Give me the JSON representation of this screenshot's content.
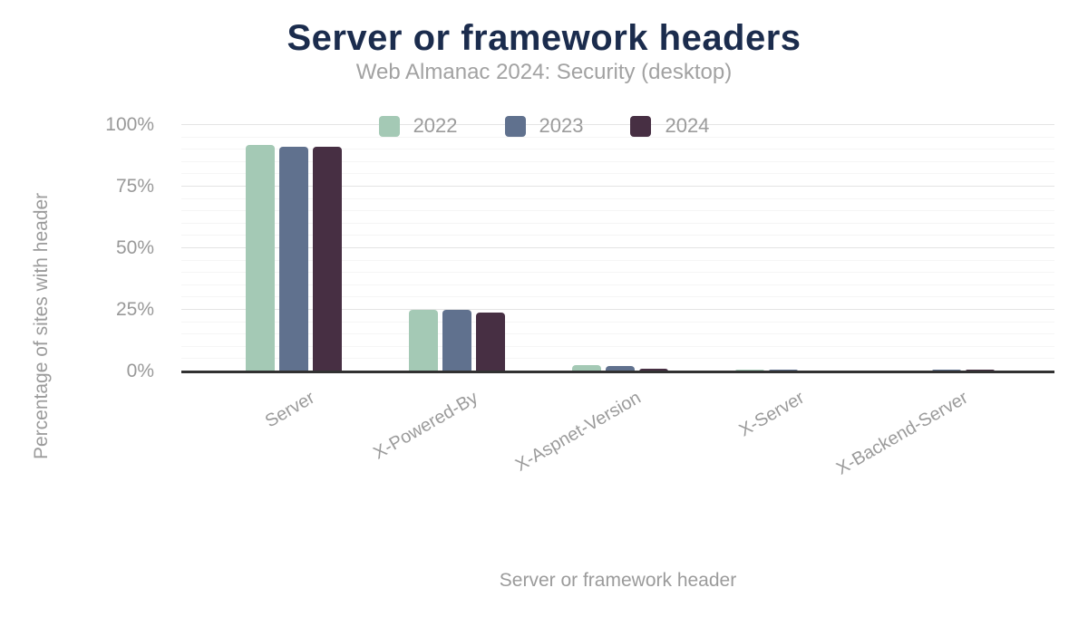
{
  "header": {
    "title": "Server or framework headers",
    "subtitle": "Web Almanac 2024: Security (desktop)"
  },
  "chart_data": {
    "type": "bar",
    "title": "Server or framework headers",
    "subtitle": "Web Almanac 2024: Security (desktop)",
    "xlabel": "Server or framework header",
    "ylabel": "Percentage of sites with header",
    "categories": [
      "Server",
      "X-Powered-By",
      "X-Aspnet-Version",
      "X-Server",
      "X-Backend-Server"
    ],
    "series": [
      {
        "name": "2022",
        "color": "#a4c9b5",
        "values": [
          92,
          25,
          2.4,
          0.6,
          0.5
        ]
      },
      {
        "name": "2023",
        "color": "#60718e",
        "values": [
          91,
          25,
          2.2,
          0.7,
          0.7
        ]
      },
      {
        "name": "2024",
        "color": "#472f43",
        "values": [
          91,
          24,
          1.1,
          0.5,
          0.6
        ]
      }
    ],
    "ylim": [
      0,
      100
    ],
    "yticks": [
      "0%",
      "25%",
      "50%",
      "75%",
      "100%"
    ],
    "ytick_values": [
      0,
      25,
      50,
      75,
      100
    ],
    "minor_grid_step": 5,
    "legend_position": "top-center",
    "grid": true,
    "colors": {
      "title": "#1b2c4d",
      "subtitle": "#a2a2a2",
      "axis_text": "#9b9b9b",
      "axis_line": "#313131",
      "major_grid": "#e4e4e4",
      "minor_grid": "#f5f5f5",
      "background": "#ffffff"
    }
  }
}
